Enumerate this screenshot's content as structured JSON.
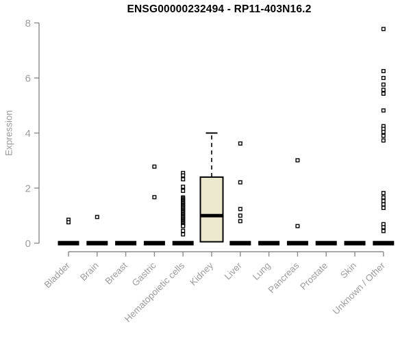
{
  "chart_data": {
    "type": "boxplot",
    "title": "ENSG00000232494 - RP11-403N16.2",
    "ylabel": "Expression",
    "xlabel": "",
    "ylim": [
      0,
      8
    ],
    "yticks": [
      0,
      2,
      4,
      6,
      8
    ],
    "grid": "off",
    "legend": "none",
    "categories": [
      "Bladder",
      "Brain",
      "Breast",
      "Gastric",
      "Hematopoietic cells",
      "Kidney",
      "Liver",
      "Lung",
      "Pancreas",
      "Prostate",
      "Skin",
      "Unknown / Other"
    ],
    "series": [
      {
        "name": "Bladder",
        "whisker_low": 0,
        "q1": 0,
        "median": 0,
        "q3": 0,
        "whisker_high": 0,
        "outliers": [
          0.85,
          0.76
        ]
      },
      {
        "name": "Brain",
        "whisker_low": 0,
        "q1": 0,
        "median": 0,
        "q3": 0,
        "whisker_high": 0,
        "outliers": [
          0.95
        ]
      },
      {
        "name": "Breast",
        "whisker_low": 0,
        "q1": 0,
        "median": 0,
        "q3": 0,
        "whisker_high": 0,
        "outliers": []
      },
      {
        "name": "Gastric",
        "whisker_low": 0,
        "q1": 0,
        "median": 0,
        "q3": 0,
        "whisker_high": 0,
        "outliers": [
          2.78,
          1.67
        ]
      },
      {
        "name": "Hematopoietic cells",
        "whisker_low": 0,
        "q1": 0,
        "median": 0,
        "q3": 0,
        "whisker_high": 0,
        "outliers": [
          2.55,
          2.46,
          2.32,
          2.05,
          1.9,
          1.66,
          1.62,
          1.58,
          1.54,
          1.5,
          1.46,
          1.42,
          1.38,
          1.34,
          1.3,
          1.26,
          1.22,
          1.18,
          1.14,
          1.1,
          1.06,
          1.02,
          0.98,
          0.94,
          0.9,
          0.86,
          0.82,
          0.78,
          0.74,
          0.7,
          0.66,
          0.62,
          0.45,
          0.32
        ]
      },
      {
        "name": "Kidney",
        "whisker_low": 0.05,
        "q1": 0.05,
        "median": 1.0,
        "q3": 2.4,
        "whisker_high": 4.0,
        "outliers": []
      },
      {
        "name": "Liver",
        "whisker_low": 0,
        "q1": 0,
        "median": 0,
        "q3": 0,
        "whisker_high": 0,
        "outliers": [
          3.62,
          2.21,
          1.24,
          1.0,
          0.8
        ]
      },
      {
        "name": "Lung",
        "whisker_low": 0,
        "q1": 0,
        "median": 0,
        "q3": 0,
        "whisker_high": 0,
        "outliers": []
      },
      {
        "name": "Pancreas",
        "whisker_low": 0,
        "q1": 0,
        "median": 0,
        "q3": 0,
        "whisker_high": 0,
        "outliers": [
          3.01,
          0.62
        ]
      },
      {
        "name": "Prostate",
        "whisker_low": 0,
        "q1": 0,
        "median": 0,
        "q3": 0,
        "whisker_high": 0,
        "outliers": []
      },
      {
        "name": "Skin",
        "whisker_low": 0,
        "q1": 0,
        "median": 0,
        "q3": 0,
        "whisker_high": 0,
        "outliers": []
      },
      {
        "name": "Unknown / Other",
        "whisker_low": 0,
        "q1": 0,
        "median": 0,
        "q3": 0,
        "whisker_high": 0,
        "outliers": [
          7.78,
          6.25,
          6.0,
          5.76,
          5.57,
          5.43,
          4.82,
          4.25,
          4.15,
          4.04,
          3.9,
          3.73,
          1.82,
          1.66,
          1.53,
          1.41,
          1.28,
          0.69,
          0.58,
          0.44
        ]
      }
    ],
    "colors": {
      "box_fill": "#ece8cd",
      "box_stroke": "#000000",
      "median": "#000000",
      "outlier": "#000000",
      "axis_line": "#8a8a8a",
      "tick_label": "#9c9c9c",
      "title": "#000000"
    }
  }
}
